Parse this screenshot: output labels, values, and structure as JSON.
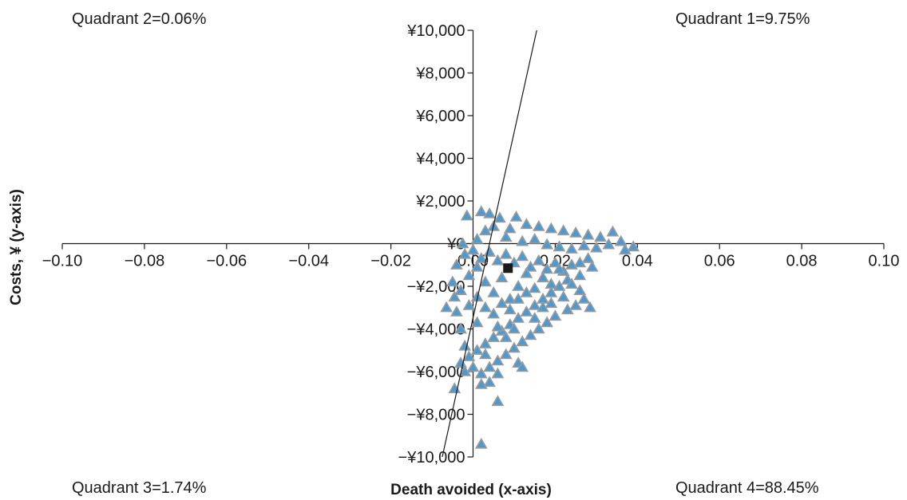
{
  "chart_data": {
    "type": "scatter",
    "xlabel": "Death avoided (x-axis)",
    "ylabel": "Costs, ¥ (y-axis)",
    "xlim": [
      -0.1,
      0.1
    ],
    "ylim": [
      -10000,
      10000
    ],
    "x_ticks": [
      -0.1,
      -0.08,
      -0.06,
      -0.04,
      -0.02,
      0.0,
      0.02,
      0.04,
      0.06,
      0.08,
      0.1
    ],
    "x_tick_labels": [
      "−0.10",
      "−0.08",
      "−0.06",
      "−0.04",
      "−0.02",
      "0.00",
      "0.02",
      "0.04",
      "0.06",
      "0.08",
      "0.10"
    ],
    "y_ticks": [
      -10000,
      -8000,
      -6000,
      -4000,
      -2000,
      0,
      2000,
      4000,
      6000,
      8000,
      10000
    ],
    "y_tick_labels": [
      "−¥10,000",
      "−¥8,000",
      "−¥6,000",
      "−¥4,000",
      "−¥2,000",
      "¥0",
      "¥2,000",
      "¥4,000",
      "¥6,000",
      "¥8,000",
      "¥10,000"
    ],
    "quadrants": {
      "q1": "Quadrant 1=9.75%",
      "q2": "Quadrant 2=0.06%",
      "q3": "Quadrant 3=1.74%",
      "q4": "Quadrant 4=88.45%"
    },
    "point_style": {
      "marker": "triangle",
      "fill": "#4a9ad4",
      "stroke": "#9a9a9a"
    },
    "mean_point": {
      "x": 0.0085,
      "y": -1150,
      "marker": "square",
      "color": "#1a1a1a"
    },
    "reference_line": {
      "from": [
        -0.0075,
        -10000
      ],
      "to": [
        0.0155,
        10000
      ]
    },
    "points": [
      [
        -0.0015,
        1300
      ],
      [
        0.002,
        1500
      ],
      [
        0.004,
        1400
      ],
      [
        0.0065,
        1200
      ],
      [
        0.0105,
        1250
      ],
      [
        0.005,
        800
      ],
      [
        0.003,
        600
      ],
      [
        0.009,
        700
      ],
      [
        0.013,
        900
      ],
      [
        0.016,
        800
      ],
      [
        0.019,
        700
      ],
      [
        0.022,
        600
      ],
      [
        0.025,
        500
      ],
      [
        0.028,
        400
      ],
      [
        0.031,
        300
      ],
      [
        0.034,
        550
      ],
      [
        0.036,
        100
      ],
      [
        0.039,
        -150
      ],
      [
        0.037,
        -300
      ],
      [
        0.033,
        -50
      ],
      [
        0.03,
        -200
      ],
      [
        0.027,
        -100
      ],
      [
        0.024,
        -250
      ],
      [
        0.021,
        -150
      ],
      [
        0.018,
        -50
      ],
      [
        0.015,
        200
      ],
      [
        0.012,
        100
      ],
      [
        0.008,
        300
      ],
      [
        0.001,
        200
      ],
      [
        -0.0025,
        0
      ],
      [
        -0.004,
        -1000
      ],
      [
        -0.002,
        -500
      ],
      [
        0.0,
        -300
      ],
      [
        0.002,
        -700
      ],
      [
        0.004,
        -400
      ],
      [
        0.006,
        -800
      ],
      [
        0.008,
        -500
      ],
      [
        0.01,
        -900
      ],
      [
        0.012,
        -600
      ],
      [
        0.014,
        -1100
      ],
      [
        0.016,
        -800
      ],
      [
        0.018,
        -1200
      ],
      [
        0.02,
        -900
      ],
      [
        0.022,
        -1300
      ],
      [
        0.024,
        -1000
      ],
      [
        0.026,
        -900
      ],
      [
        0.028,
        -700
      ],
      [
        0.029,
        -1100
      ],
      [
        0.026,
        -1500
      ],
      [
        0.023,
        -1700
      ],
      [
        0.021,
        -2000
      ],
      [
        0.019,
        -2300
      ],
      [
        0.017,
        -2600
      ],
      [
        0.015,
        -2900
      ],
      [
        0.013,
        -3200
      ],
      [
        0.011,
        -3500
      ],
      [
        0.009,
        -3800
      ],
      [
        0.007,
        -4100
      ],
      [
        0.005,
        -4400
      ],
      [
        0.003,
        -4700
      ],
      [
        0.001,
        -5000
      ],
      [
        -0.001,
        -5300
      ],
      [
        -0.002,
        -4800
      ],
      [
        -0.003,
        -4000
      ],
      [
        -0.004,
        -3200
      ],
      [
        -0.0045,
        -2500
      ],
      [
        -0.005,
        -1800
      ],
      [
        -0.0065,
        -3000
      ],
      [
        -0.003,
        -2200
      ],
      [
        -0.001,
        -1500
      ],
      [
        0.001,
        -1100
      ],
      [
        0.003,
        -1800
      ],
      [
        0.005,
        -2300
      ],
      [
        0.007,
        -1600
      ],
      [
        0.009,
        -2600
      ],
      [
        0.011,
        -2000
      ],
      [
        0.013,
        -1400
      ],
      [
        0.015,
        -2100
      ],
      [
        0.017,
        -1600
      ],
      [
        0.019,
        -1900
      ],
      [
        0.021,
        -1200
      ],
      [
        0.024,
        -1900
      ],
      [
        0.027,
        -2600
      ],
      [
        0.025,
        -2900
      ],
      [
        0.023,
        -3100
      ],
      [
        0.02,
        -3400
      ],
      [
        0.018,
        -3700
      ],
      [
        0.016,
        -4000
      ],
      [
        0.014,
        -4300
      ],
      [
        0.012,
        -4600
      ],
      [
        0.01,
        -4900
      ],
      [
        0.008,
        -5200
      ],
      [
        0.006,
        -5500
      ],
      [
        0.004,
        -5800
      ],
      [
        0.002,
        -6100
      ],
      [
        0.0,
        -5800
      ],
      [
        -0.002,
        -6000
      ],
      [
        -0.003,
        -5600
      ],
      [
        0.001,
        -3700
      ],
      [
        0.003,
        -3000
      ],
      [
        0.005,
        -3300
      ],
      [
        0.007,
        -2800
      ],
      [
        0.009,
        -3100
      ],
      [
        0.011,
        -2600
      ],
      [
        0.013,
        -2300
      ],
      [
        -0.001,
        -2900
      ],
      [
        0.001,
        -2500
      ],
      [
        0.006,
        -3900
      ],
      [
        0.008,
        -4400
      ],
      [
        0.01,
        -4000
      ],
      [
        0.003,
        -5200
      ],
      [
        0.006,
        -6100
      ],
      [
        0.004,
        -6500
      ],
      [
        0.011,
        -5600
      ],
      [
        0.002,
        -6600
      ],
      [
        -0.0045,
        -6800
      ],
      [
        0.006,
        -7400
      ],
      [
        0.002,
        -9400
      ],
      [
        0.012,
        -5800
      ],
      [
        0.015,
        -3500
      ],
      [
        0.017,
        -3000
      ],
      [
        0.019,
        -2800
      ],
      [
        0.0285,
        -3000
      ],
      [
        0.026,
        -2200
      ],
      [
        0.022,
        -2500
      ]
    ]
  }
}
